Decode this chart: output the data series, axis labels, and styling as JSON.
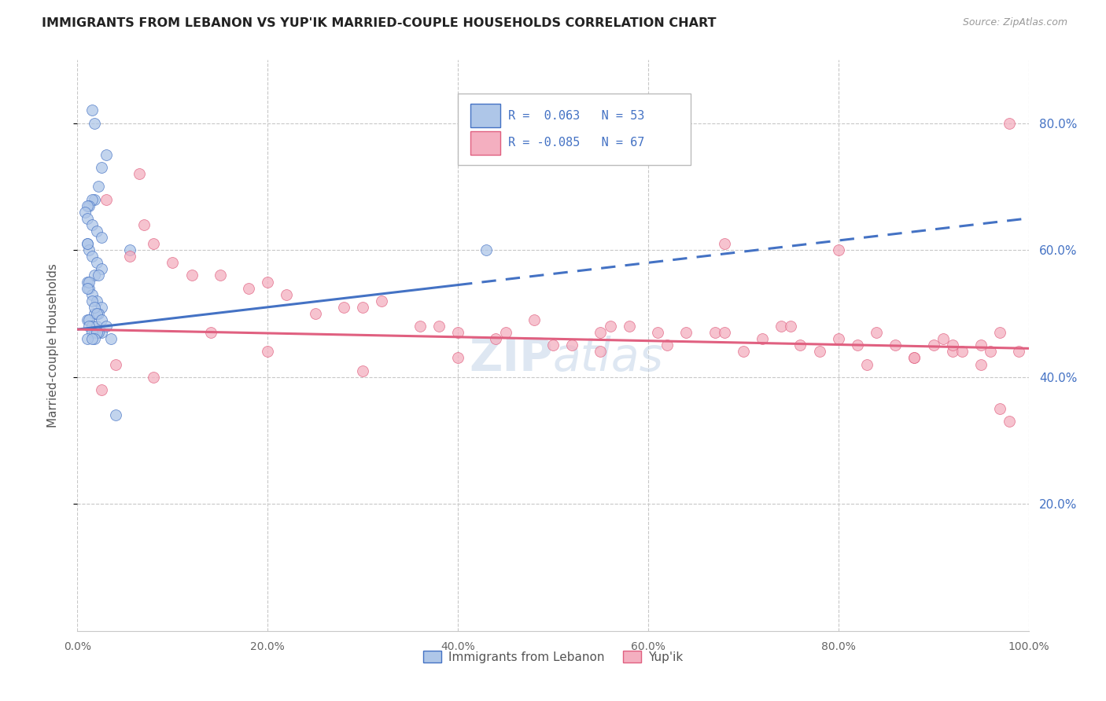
{
  "title": "IMMIGRANTS FROM LEBANON VS YUP'IK MARRIED-COUPLE HOUSEHOLDS CORRELATION CHART",
  "source": "Source: ZipAtlas.com",
  "ylabel": "Married-couple Households",
  "legend_blue_r": "R =  0.063",
  "legend_blue_n": "N = 53",
  "legend_pink_r": "R = -0.085",
  "legend_pink_n": "N = 67",
  "legend_label_blue": "Immigrants from Lebanon",
  "legend_label_pink": "Yup'ik",
  "blue_color": "#aec6e8",
  "pink_color": "#f4afc0",
  "blue_line_color": "#4472c4",
  "pink_line_color": "#e06080",
  "trendline_text_color": "#4472c4",
  "ytick_color": "#4472c4",
  "background_color": "#ffffff",
  "grid_color": "#c8c8c8",
  "watermark_color": "#c8d8ea",
  "blue_dots_x": [
    1.5,
    1.8,
    3.0,
    2.5,
    2.2,
    1.8,
    1.5,
    1.2,
    1.0,
    0.8,
    1.0,
    1.5,
    2.0,
    2.5,
    1.0,
    1.2,
    1.5,
    2.0,
    2.5,
    1.8,
    2.2,
    1.0,
    1.2,
    1.5,
    2.0,
    2.5,
    1.8,
    2.2,
    1.0,
    1.2,
    1.5,
    2.0,
    2.5,
    1.8,
    2.2,
    3.5,
    4.0,
    1.0,
    5.5,
    1.2,
    1.0,
    1.5,
    1.8,
    2.0,
    2.5,
    1.2,
    3.0,
    1.5,
    2.0,
    1.8,
    43.0,
    1.0,
    1.5
  ],
  "blue_dots_y": [
    82,
    80,
    75,
    73,
    70,
    68,
    68,
    67,
    67,
    66,
    65,
    64,
    63,
    62,
    61,
    60,
    59,
    58,
    57,
    56,
    56,
    55,
    54,
    53,
    52,
    51,
    50,
    50,
    49,
    49,
    48,
    48,
    47,
    47,
    47,
    46,
    34,
    61,
    60,
    55,
    54,
    52,
    51,
    50,
    49,
    48,
    48,
    47,
    47,
    46,
    60,
    46,
    46
  ],
  "pink_dots_x": [
    3.0,
    6.5,
    7.0,
    8.0,
    5.5,
    12.0,
    15.0,
    18.0,
    22.0,
    28.0,
    32.0,
    36.0,
    40.0,
    44.0,
    48.0,
    52.0,
    55.0,
    58.0,
    61.0,
    64.0,
    67.0,
    70.0,
    72.0,
    74.0,
    76.0,
    78.0,
    80.0,
    82.0,
    84.0,
    86.0,
    88.0,
    90.0,
    91.0,
    92.0,
    93.0,
    95.0,
    96.0,
    97.0,
    98.0,
    99.0,
    10.0,
    20.0,
    25.0,
    30.0,
    38.0,
    45.0,
    50.0,
    56.0,
    62.0,
    68.0,
    75.0,
    83.0,
    88.0,
    92.0,
    95.0,
    97.0,
    2.5,
    4.0,
    8.0,
    14.0,
    20.0,
    30.0,
    40.0,
    55.0,
    68.0,
    80.0,
    98.0
  ],
  "pink_dots_y": [
    68,
    72,
    64,
    61,
    59,
    56,
    56,
    54,
    53,
    51,
    52,
    48,
    47,
    46,
    49,
    45,
    44,
    48,
    47,
    47,
    47,
    44,
    46,
    48,
    45,
    44,
    46,
    45,
    47,
    45,
    43,
    45,
    46,
    44,
    44,
    45,
    44,
    35,
    33,
    44,
    58,
    55,
    50,
    51,
    48,
    47,
    45,
    48,
    45,
    47,
    48,
    42,
    43,
    45,
    42,
    47,
    38,
    42,
    40,
    47,
    44,
    41,
    43,
    47,
    61,
    60,
    80
  ],
  "xlim": [
    0,
    100
  ],
  "ylim": [
    0,
    90
  ],
  "yticks": [
    20,
    40,
    60,
    80
  ],
  "ytick_labels": [
    "20.0%",
    "40.0%",
    "60.0%",
    "80.0%"
  ],
  "xtick_labels": [
    "0.0%",
    "20.0%",
    "40.0%",
    "60.0%",
    "80.0%",
    "100.0%"
  ],
  "xticks": [
    0,
    20,
    40,
    60,
    80,
    100
  ],
  "blue_trend_start_y": 47.5,
  "blue_trend_end_y": 65.0,
  "pink_trend_start_y": 47.5,
  "pink_trend_end_y": 44.5,
  "blue_solid_end_x": 40,
  "dot_size": 100
}
